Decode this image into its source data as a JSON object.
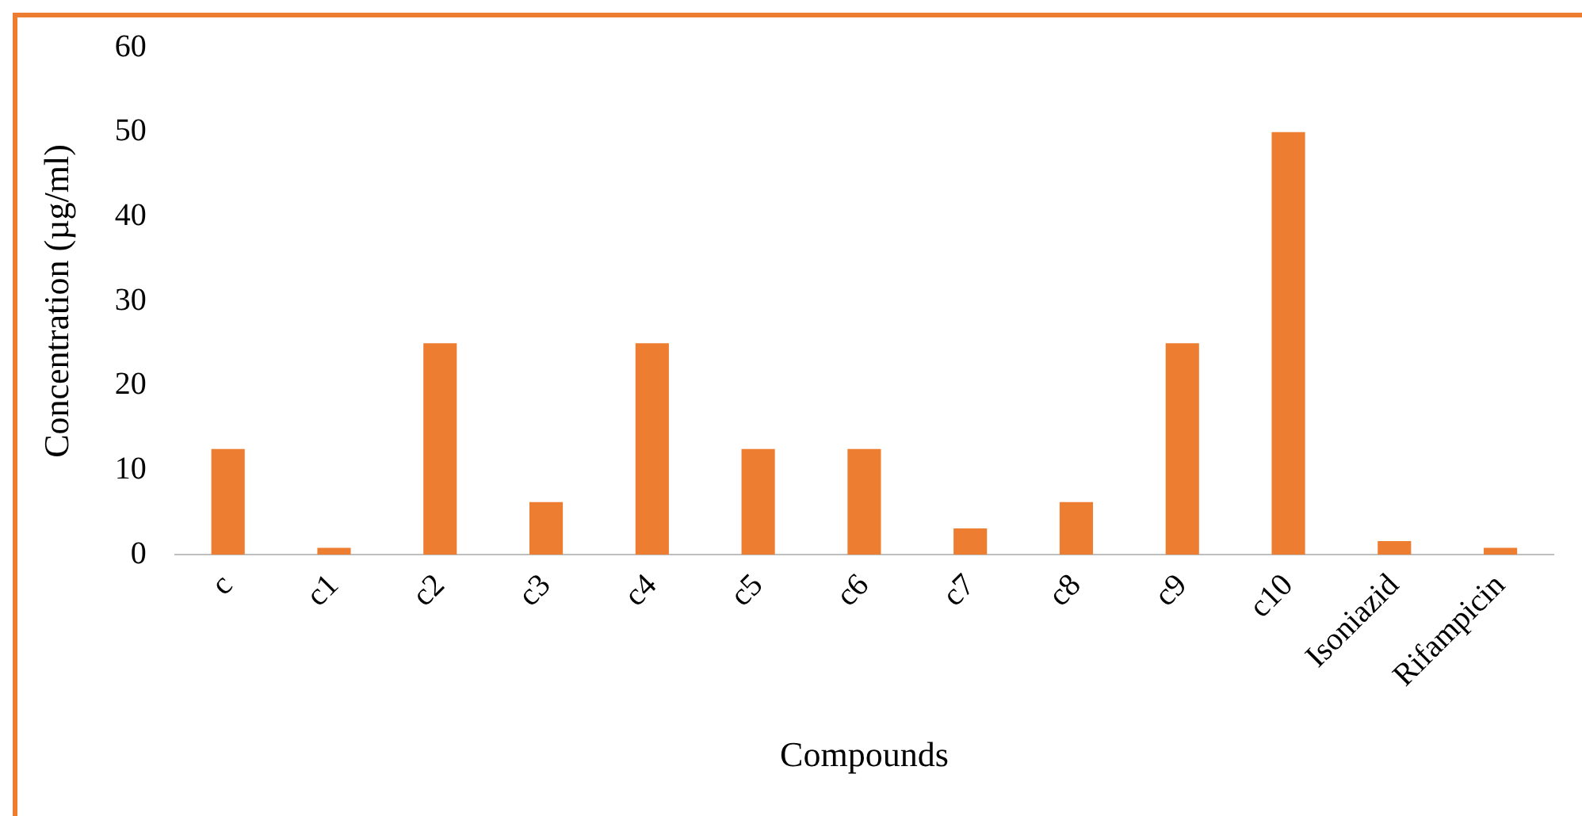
{
  "chart_data": {
    "type": "bar",
    "xlabel": "Compounds",
    "ylabel": "Concentration (µg/ml)",
    "categories": [
      "c",
      "c1",
      "c2",
      "c3",
      "c4",
      "c5",
      "c6",
      "c7",
      "c8",
      "c9",
      "c10",
      "Isoniazid",
      "Rifampicin"
    ],
    "values": [
      12.5,
      0.8,
      25,
      6.2,
      25,
      12.5,
      12.5,
      3.1,
      6.2,
      25,
      50,
      1.6,
      0.8
    ],
    "color": "#ed7d31",
    "ylim": [
      0,
      60
    ],
    "yticks": [
      0,
      10,
      20,
      30,
      40,
      50,
      60
    ],
    "grid": false,
    "legend": false
  }
}
